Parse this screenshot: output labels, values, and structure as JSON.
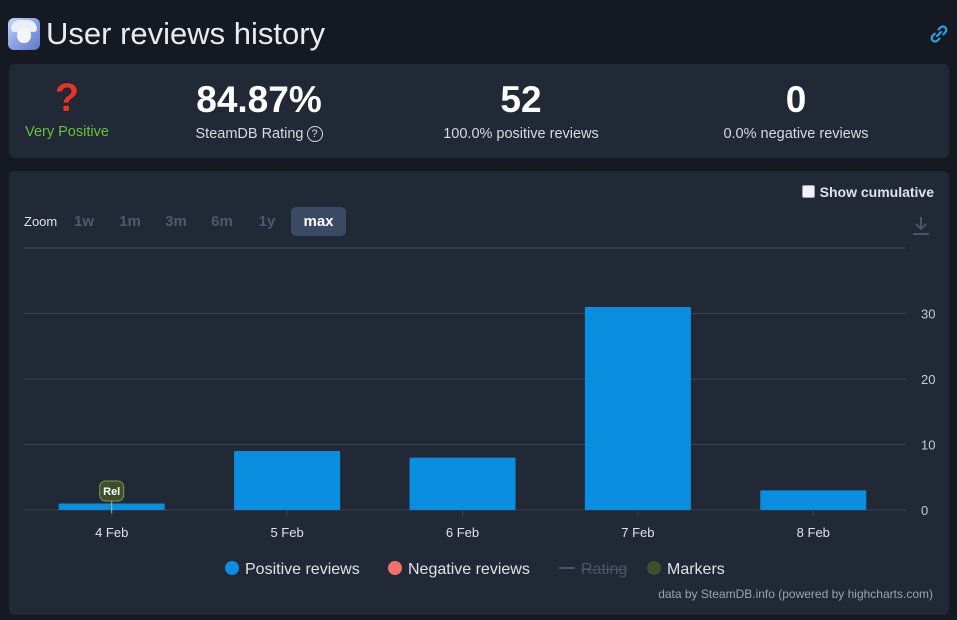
{
  "header": {
    "title": "User reviews history",
    "icon": "game-avatar-icon",
    "link_icon": "link-icon"
  },
  "summary": {
    "verdict_symbol": "?",
    "verdict_label": "Very Positive",
    "rating_value": "84.87%",
    "rating_label": "SteamDB Rating",
    "positive_count": "52",
    "positive_label": "100.0% positive reviews",
    "negative_count": "0",
    "negative_label": "0.0% negative reviews"
  },
  "controls": {
    "show_cumulative_label": "Show cumulative",
    "zoom_label": "Zoom",
    "zoom_options": [
      "1w",
      "1m",
      "3m",
      "6m",
      "1y",
      "max"
    ],
    "zoom_selected": "max"
  },
  "legend": {
    "positive": "Positive reviews",
    "negative": "Negative reviews",
    "rating": "Rating",
    "markers": "Markers"
  },
  "credits": "data by SteamDB.info (powered by highcharts.com)",
  "colors": {
    "positive": "#0a8ee0",
    "negative": "#f2716f",
    "rating": "#495468",
    "markers": "#3e4f2a",
    "verdict": "#66c23c"
  },
  "chart_data": {
    "type": "bar",
    "categories": [
      "4 Feb",
      "5 Feb",
      "6 Feb",
      "7 Feb",
      "8 Feb"
    ],
    "series": [
      {
        "name": "Positive reviews",
        "values": [
          1,
          9,
          8,
          31,
          3
        ]
      },
      {
        "name": "Negative reviews",
        "values": [
          0,
          0,
          0,
          0,
          0
        ]
      }
    ],
    "y_ticks": [
      0,
      10,
      20,
      30,
      40
    ],
    "y_tick_labels": [
      "0",
      "10",
      "20",
      "30",
      ""
    ],
    "ylim": [
      0,
      40
    ],
    "markers": [
      {
        "category": "4 Feb",
        "label": "Rel"
      }
    ],
    "grid": true,
    "legend_position": "bottom"
  }
}
